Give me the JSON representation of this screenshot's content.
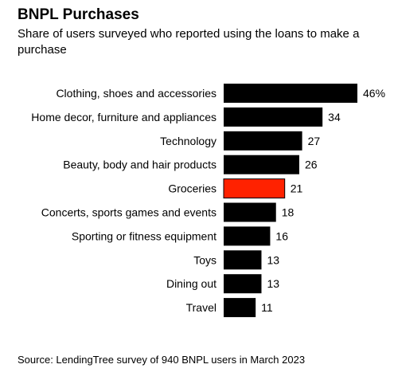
{
  "chart_data": {
    "type": "bar",
    "orientation": "horizontal",
    "title": "BNPL Purchases",
    "subtitle": "Share of users surveyed who reported using the loans to make a purchase",
    "source": "Source: LendingTree survey of 940 BNPL users in March 2023",
    "categories": [
      "Clothing, shoes and accessories",
      "Home decor, furniture and appliances",
      "Technology",
      "Beauty, body and hair products",
      "Groceries",
      "Concerts, sports games and events",
      "Sporting or fitness equipment",
      "Toys",
      "Dining out",
      "Travel"
    ],
    "values": [
      46,
      34,
      27,
      26,
      21,
      18,
      16,
      13,
      13,
      11
    ],
    "value_labels": [
      "46%",
      "34",
      "27",
      "26",
      "21",
      "18",
      "16",
      "13",
      "13",
      "11"
    ],
    "highlight_index": 4,
    "colors": {
      "bar": "#000000",
      "highlight": "#ff2200",
      "text": "#000000"
    },
    "xlim": [
      0,
      46
    ],
    "grid": false,
    "legend": "none"
  }
}
